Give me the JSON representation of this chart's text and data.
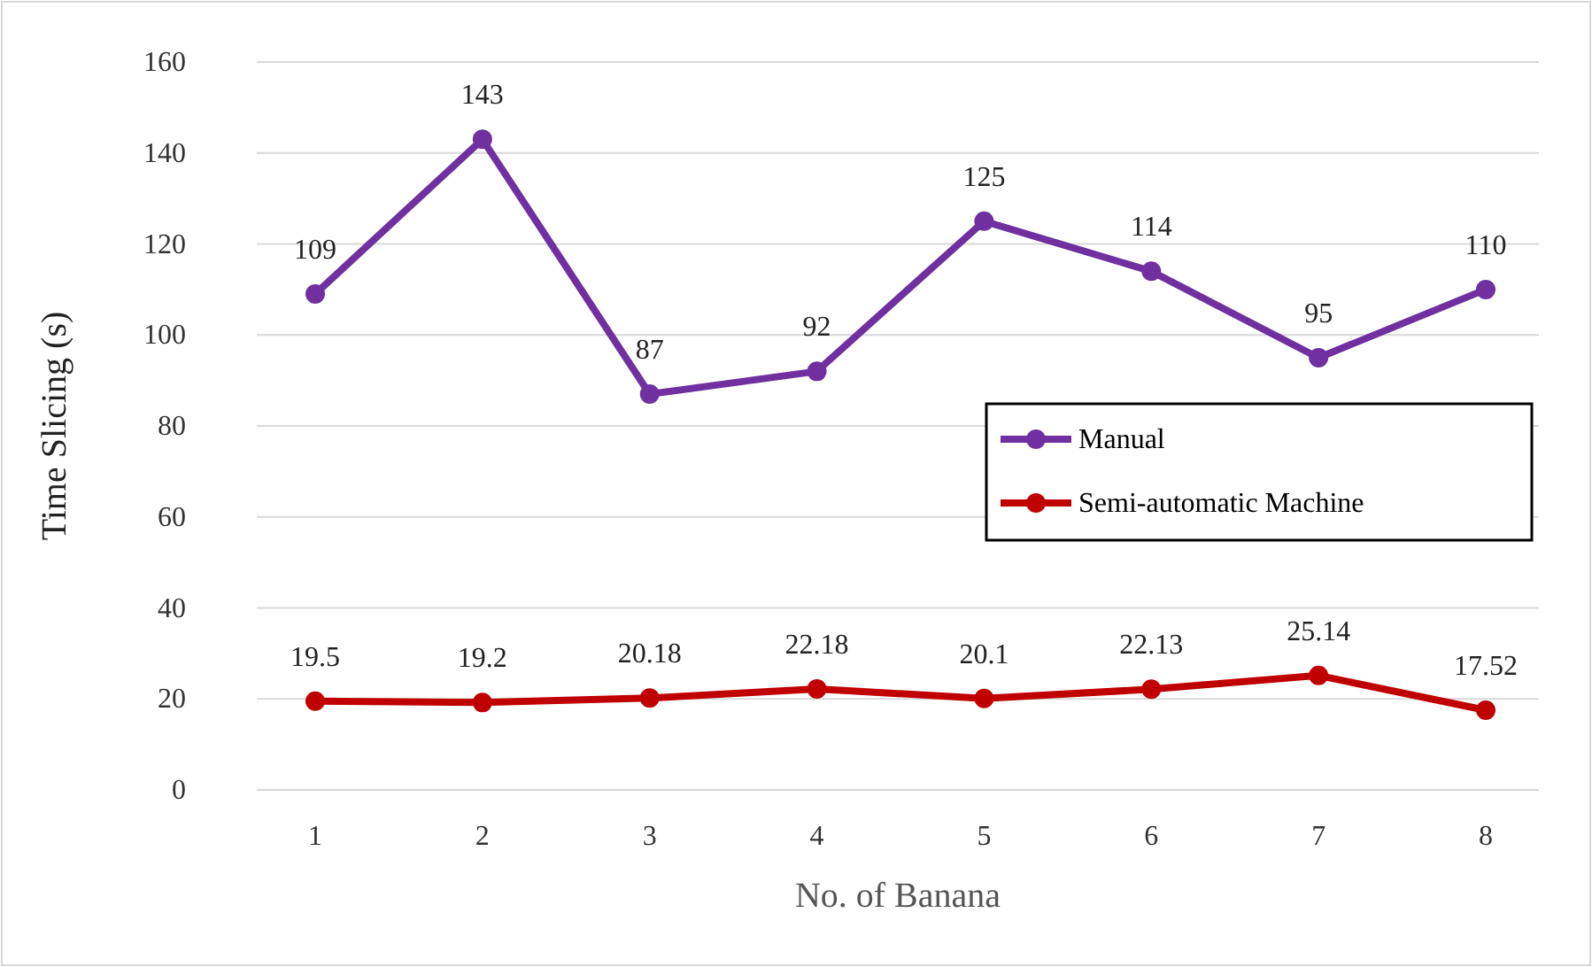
{
  "chart_data": {
    "type": "line",
    "xlabel": "No. of Banana",
    "ylabel": "Time Slicing (s)",
    "categories": [
      "1",
      "2",
      "3",
      "4",
      "5",
      "6",
      "7",
      "8"
    ],
    "series": [
      {
        "name": "Manual",
        "color": "#7030a0",
        "values": [
          109,
          143,
          87,
          92,
          125,
          114,
          95,
          110
        ]
      },
      {
        "name": "Semi-automatic Machine",
        "color": "#c00000",
        "values": [
          19.5,
          19.2,
          20.18,
          22.18,
          20.1,
          22.13,
          25.14,
          17.52
        ]
      }
    ],
    "ylim": [
      0,
      160
    ],
    "yticks": [
      0,
      20,
      40,
      60,
      80,
      100,
      120,
      140,
      160
    ],
    "grid": "y",
    "legend": "right",
    "marker": "circle",
    "line_style": "solid",
    "data_labels": true
  }
}
